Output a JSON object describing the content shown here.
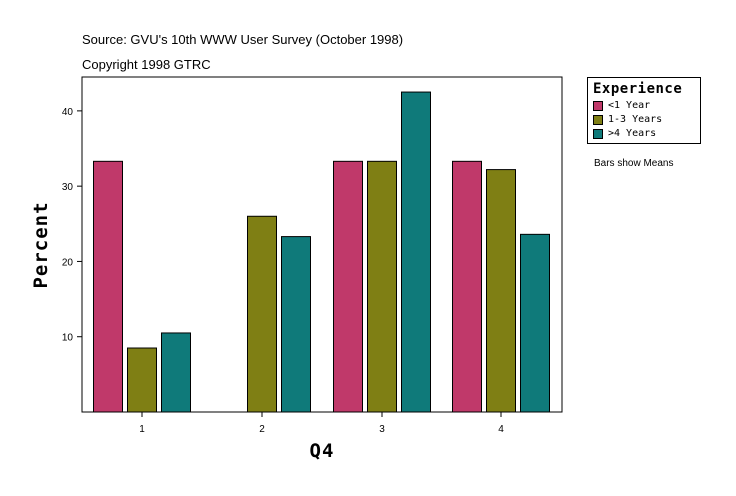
{
  "header": {
    "source": "Source: GVU's 10th WWW User Survey (October 1998)",
    "copyright": "Copyright 1998 GTRC"
  },
  "note": "Bars show Means",
  "chart_data": {
    "type": "bar",
    "title": "",
    "xlabel": "Q4",
    "ylabel": "Percent",
    "categories": [
      "1",
      "2",
      "3",
      "4"
    ],
    "yticks": [
      10,
      20,
      30,
      40
    ],
    "ylim": [
      0,
      44.5
    ],
    "legend_title": "Experience",
    "legend_position": "top-right outside",
    "series": [
      {
        "name": "<1 Year",
        "color": "#c0396a",
        "values": [
          33.3,
          0,
          33.3,
          33.3
        ]
      },
      {
        "name": "1-3 Years",
        "color": "#7f7f14",
        "values": [
          8.5,
          26.0,
          33.3,
          32.2
        ]
      },
      {
        "name": ">4 Years",
        "color": "#0f7a7a",
        "values": [
          10.5,
          23.3,
          42.5,
          23.6
        ]
      }
    ]
  }
}
